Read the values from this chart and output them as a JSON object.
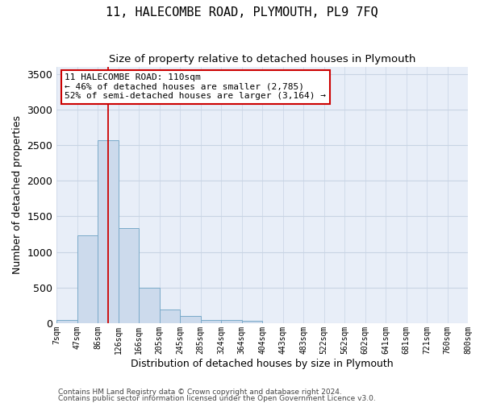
{
  "title": "11, HALECOMBE ROAD, PLYMOUTH, PL9 7FQ",
  "subtitle": "Size of property relative to detached houses in Plymouth",
  "xlabel": "Distribution of detached houses by size in Plymouth",
  "ylabel": "Number of detached properties",
  "bar_values": [
    50,
    1230,
    2570,
    1340,
    500,
    190,
    100,
    45,
    40,
    35,
    0,
    0,
    0,
    0,
    0,
    0,
    0,
    0,
    0,
    0
  ],
  "bin_labels": [
    "7sqm",
    "47sqm",
    "86sqm",
    "126sqm",
    "166sqm",
    "205sqm",
    "245sqm",
    "285sqm",
    "324sqm",
    "364sqm",
    "404sqm",
    "443sqm",
    "483sqm",
    "522sqm",
    "562sqm",
    "602sqm",
    "641sqm",
    "681sqm",
    "721sqm",
    "760sqm",
    "800sqm"
  ],
  "bar_color": "#ccdaec",
  "bar_edge_color": "#7aaac9",
  "grid_color": "#c8d4e4",
  "background_color": "#e8eef8",
  "property_bin_index": 2,
  "annotation_text": "11 HALECOMBE ROAD: 110sqm\n← 46% of detached houses are smaller (2,785)\n52% of semi-detached houses are larger (3,164) →",
  "annotation_box_facecolor": "#ffffff",
  "annotation_border_color": "#cc0000",
  "vline_color": "#cc0000",
  "ylim": [
    0,
    3600
  ],
  "yticks": [
    0,
    500,
    1000,
    1500,
    2000,
    2500,
    3000,
    3500
  ],
  "footer_line1": "Contains HM Land Registry data © Crown copyright and database right 2024.",
  "footer_line2": "Contains public sector information licensed under the Open Government Licence v3.0."
}
